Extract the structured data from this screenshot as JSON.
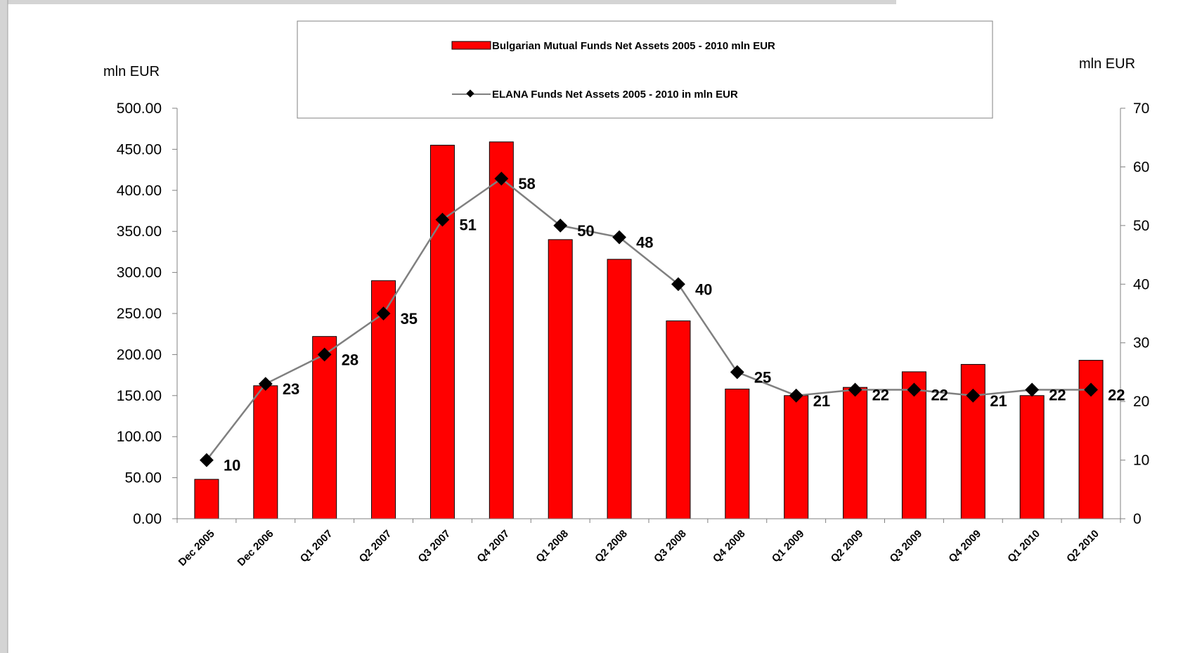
{
  "chart_data": {
    "type": "bar+line",
    "categories": [
      "Dec 2005",
      "Dec 2006",
      "Q1 2007",
      "Q2 2007",
      "Q3 2007",
      "Q4 2007",
      "Q1 2008",
      "Q2 2008",
      "Q3 2008",
      "Q4 2008",
      "Q1 2009",
      "Q2 2009",
      "Q3 2009",
      "Q4 2009",
      "Q1 2010",
      "Q2 2010"
    ],
    "series": [
      {
        "name": "Bulgarian Mutual Funds Net Assets 2005 - 2010 mln EUR",
        "type": "bar",
        "axis": "left",
        "color": "#ff0000",
        "values": [
          48,
          162,
          222,
          290,
          455,
          459,
          340,
          316,
          241,
          158,
          150,
          160,
          179,
          188,
          150,
          193
        ]
      },
      {
        "name": "ELANA Funds Net Assets 2005 - 2010 in mln EUR",
        "type": "line",
        "axis": "right",
        "color": "#808080",
        "marker_color": "#000000",
        "values": [
          10,
          23,
          28,
          35,
          51,
          58,
          50,
          48,
          40,
          25,
          21,
          22,
          22,
          21,
          22,
          22
        ],
        "labels": [
          "10",
          "23",
          "28",
          "35",
          "51",
          "58",
          "50",
          "48",
          "40",
          "25",
          "21",
          "22",
          "22",
          "21",
          "22",
          "22"
        ]
      }
    ],
    "y_left": {
      "label": "mln EUR",
      "ylim": [
        0,
        500
      ],
      "ticks": [
        0,
        50,
        100,
        150,
        200,
        250,
        300,
        350,
        400,
        450,
        500
      ],
      "tick_labels": [
        "0.00",
        "50.00",
        "100.00",
        "150.00",
        "200.00",
        "250.00",
        "300.00",
        "350.00",
        "400.00",
        "450.00",
        "500.00"
      ]
    },
    "y_right": {
      "label": "mln EUR",
      "ylim": [
        0,
        70
      ],
      "ticks": [
        0,
        10,
        20,
        30,
        40,
        50,
        60,
        70
      ],
      "tick_labels": [
        "0",
        "10",
        "20",
        "30",
        "40",
        "50",
        "60",
        "70"
      ]
    },
    "legend_position": "top-center",
    "grid": false
  }
}
